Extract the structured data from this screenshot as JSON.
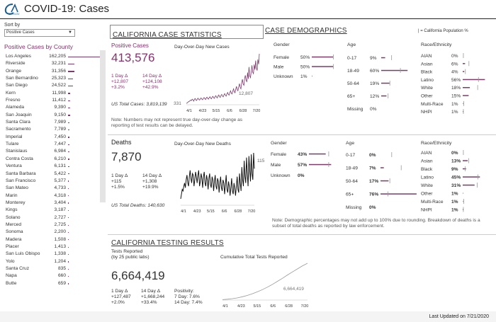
{
  "header": {
    "title": "COVID-19: Cases",
    "logo_text": "CA.GOV"
  },
  "sort": {
    "label": "Sort by",
    "value": "Positive Cases"
  },
  "counties": {
    "title": "Positive Cases by County",
    "items": [
      {
        "name": "Los Angeles",
        "value": "162,205",
        "n": 162205
      },
      {
        "name": "Riverside",
        "value": "32,231",
        "n": 32231
      },
      {
        "name": "Orange",
        "value": "31,356",
        "n": 31356
      },
      {
        "name": "San Bernardino",
        "value": "25,323",
        "n": 25323
      },
      {
        "name": "San Diego",
        "value": "24,522",
        "n": 24522
      },
      {
        "name": "Kern",
        "value": "11,998",
        "n": 11998
      },
      {
        "name": "Fresno",
        "value": "11,412",
        "n": 11412
      },
      {
        "name": "Alameda",
        "value": "9,390",
        "n": 9390
      },
      {
        "name": "San Joaquin",
        "value": "9,150",
        "n": 9150
      },
      {
        "name": "Santa Clara",
        "value": "7,989",
        "n": 7989
      },
      {
        "name": "Sacramento",
        "value": "7,789",
        "n": 7789
      },
      {
        "name": "Imperial",
        "value": "7,450",
        "n": 7450
      },
      {
        "name": "Tulare",
        "value": "7,447",
        "n": 7447
      },
      {
        "name": "Stanislaus",
        "value": "6,984",
        "n": 6984
      },
      {
        "name": "Contra Costa",
        "value": "6,210",
        "n": 6210
      },
      {
        "name": "Ventura",
        "value": "6,131",
        "n": 6131
      },
      {
        "name": "Santa Barbara",
        "value": "5,422",
        "n": 5422
      },
      {
        "name": "San Francisco",
        "value": "5,377",
        "n": 5377
      },
      {
        "name": "San Mateo",
        "value": "4,733",
        "n": 4733
      },
      {
        "name": "Marin",
        "value": "4,318",
        "n": 4318
      },
      {
        "name": "Monterey",
        "value": "3,404",
        "n": 3404
      },
      {
        "name": "Kings",
        "value": "3,187",
        "n": 3187
      },
      {
        "name": "Solano",
        "value": "2,727",
        "n": 2727
      },
      {
        "name": "Merced",
        "value": "2,725",
        "n": 2725
      },
      {
        "name": "Sonoma",
        "value": "2,200",
        "n": 2200
      },
      {
        "name": "Madera",
        "value": "1,508",
        "n": 1508
      },
      {
        "name": "Placer",
        "value": "1,413",
        "n": 1413
      },
      {
        "name": "San Luis Obispo",
        "value": "1,338",
        "n": 1338
      },
      {
        "name": "Yolo",
        "value": "1,204",
        "n": 1204
      },
      {
        "name": "Santa Cruz",
        "value": "835",
        "n": 835
      },
      {
        "name": "Napa",
        "value": "660",
        "n": 660
      },
      {
        "name": "Butte",
        "value": "659",
        "n": 659
      }
    ]
  },
  "sections": {
    "case_stats": "CALIFORNIA CASE STATISTICS",
    "case_demo": "CASE DEMOGRAPHICS",
    "testing": "CALIFORNIA TESTING RESULTS",
    "legend": "| = California Population %"
  },
  "cases": {
    "label": "Positive Cases",
    "total": "413,576",
    "d1_label": "1 Day Δ",
    "d1_abs": "+12,807",
    "d1_pct": "+3.2%",
    "d14_label": "14 Day Δ",
    "d14_abs": "+124,108",
    "d14_pct": "+42.9%",
    "us_total": "US Total Cases: 3,819,139",
    "chart_title": "Day-Over-Day New Cases",
    "chart_first": "331",
    "chart_last": "12,807",
    "note": "Note: Numbers may not represent true day-over-day change as reporting of test results can be delayed."
  },
  "deaths": {
    "label": "Deaths",
    "total": "7,870",
    "d1_label": "1 Day Δ",
    "d1_abs": "+115",
    "d1_pct": "+1.5%",
    "d14_label": "14 Day Δ",
    "d14_abs": "+1,308",
    "d14_pct": "+19.9%",
    "us_total": "US Total Deaths: 140,630",
    "chart_title": "Day-Over-Day New Deaths",
    "chart_last": "115",
    "note": "Note: Demographic percentages may not add up to 100% due to rounding. Breakdown of deaths is a subset of total deaths as reported by law enforcement."
  },
  "testing": {
    "label": "Tests Reported",
    "sub": "(by 25 public labs)",
    "total": "6,664,419",
    "d1_label": "1 Day Δ",
    "d1_abs": "+127,487",
    "d1_pct": "+2.0%",
    "d14_label": "14 Day Δ",
    "d14_abs": "+1,668,244",
    "d14_pct": "+33.4%",
    "pos_label": "Positivity:",
    "pos7": "7 Day: 7.6%",
    "pos14": "14 Day: 7.4%",
    "chart_title": "Cumulative Total Tests Reported",
    "chart_last": "6,664,419"
  },
  "axis_dates": [
    "4/1",
    "4/23",
    "5/15",
    "6/6",
    "6/28",
    "7/20"
  ],
  "demo_headers": {
    "gender": "Gender",
    "age": "Age",
    "race": "Race/Ethnicity"
  },
  "case_demo": {
    "gender": [
      {
        "label": "Female",
        "value": "50%",
        "v": 50,
        "pop": 50
      },
      {
        "label": "Male",
        "value": "50%",
        "v": 50,
        "pop": 50
      },
      {
        "label": "Unknown",
        "value": "1%",
        "v": 1,
        "pop": null
      }
    ],
    "age": [
      {
        "label": "0-17",
        "value": "9%",
        "v": 9,
        "pop": 23
      },
      {
        "label": "18-49",
        "value": "60%",
        "v": 60,
        "pop": 43
      },
      {
        "label": "50-64",
        "value": "19%",
        "v": 19,
        "pop": 19
      },
      {
        "label": "65+",
        "value": "12%",
        "v": 12,
        "pop": 15
      },
      {
        "label": "Missing",
        "value": "0%",
        "v": 0,
        "pop": null
      }
    ],
    "race": [
      {
        "label": "AIAN",
        "value": "0%",
        "v": 0,
        "pop": 1
      },
      {
        "label": "Asian",
        "value": "6%",
        "v": 6,
        "pop": 15
      },
      {
        "label": "Black",
        "value": "4%",
        "v": 4,
        "pop": 6
      },
      {
        "label": "Latino",
        "value": "56%",
        "v": 56,
        "pop": 39
      },
      {
        "label": "White",
        "value": "18%",
        "v": 18,
        "pop": 37
      },
      {
        "label": "Other",
        "value": "15%",
        "v": 15,
        "pop": null
      },
      {
        "label": "Multi-Race",
        "value": "1%",
        "v": 1,
        "pop": 2
      },
      {
        "label": "NHPI",
        "value": "1%",
        "v": 1,
        "pop": 1
      }
    ]
  },
  "death_demo": {
    "gender": [
      {
        "label": "Female",
        "value": "43%",
        "v": 43,
        "pop": 50
      },
      {
        "label": "Male",
        "value": "57%",
        "v": 57,
        "pop": 50
      },
      {
        "label": "Unknown",
        "value": "0%",
        "v": 0,
        "pop": null
      }
    ],
    "age": [
      {
        "label": "0-17",
        "value": "0%",
        "v": 0,
        "pop": 23
      },
      {
        "label": "18-49",
        "value": "7%",
        "v": 7,
        "pop": 43
      },
      {
        "label": "50-64",
        "value": "17%",
        "v": 17,
        "pop": 19
      },
      {
        "label": "65+",
        "value": "76%",
        "v": 76,
        "pop": 15
      },
      {
        "label": "Missing",
        "value": "0%",
        "v": 0,
        "pop": null
      }
    ],
    "race": [
      {
        "label": "AIAN",
        "value": "0%",
        "v": 0,
        "pop": 1
      },
      {
        "label": "Asian",
        "value": "13%",
        "v": 13,
        "pop": 15
      },
      {
        "label": "Black",
        "value": "9%",
        "v": 9,
        "pop": 6
      },
      {
        "label": "Latino",
        "value": "45%",
        "v": 45,
        "pop": 39
      },
      {
        "label": "White",
        "value": "31%",
        "v": 31,
        "pop": 37
      },
      {
        "label": "Other",
        "value": "1%",
        "v": 1,
        "pop": null
      },
      {
        "label": "Multi-Race",
        "value": "1%",
        "v": 1,
        "pop": 2
      },
      {
        "label": "NHPI",
        "value": "1%",
        "v": 1,
        "pop": 1
      }
    ]
  },
  "footer": {
    "last_updated": "Last Updated on 7/21/2020"
  },
  "chart_data": [
    {
      "type": "line",
      "title": "Day-Over-Day New Cases",
      "x_ticks": [
        "4/1",
        "4/23",
        "5/15",
        "6/6",
        "6/28",
        "7/20"
      ],
      "values": [
        331,
        420,
        610,
        780,
        870,
        1010,
        1180,
        1050,
        1400,
        1230,
        900,
        1380,
        1560,
        1200,
        1080,
        1490,
        1650,
        1300,
        1200,
        1520,
        1700,
        1420,
        1250,
        1600,
        1800,
        1530,
        1320,
        1700,
        1900,
        1560,
        1400,
        1810,
        2010,
        1650,
        1500,
        1920,
        2100,
        1760,
        1600,
        2050,
        2280,
        1880,
        1700,
        2200,
        2450,
        2000,
        1830,
        2350,
        2600,
        2150,
        1980,
        2500,
        2800,
        2350,
        2150,
        2700,
        3100,
        2600,
        2400,
        3050,
        3500,
        2900,
        2700,
        3400,
        4000,
        3300,
        3000,
        3900,
        4600,
        3800,
        3500,
        4500,
        5300,
        4400,
        4000,
        5500,
        6400,
        5200,
        4900,
        6600,
        7400,
        6100,
        5800,
        8100,
        6500,
        9500,
        7200,
        6800,
        8400,
        9900,
        8200,
        7800,
        10100,
        8800,
        11100,
        9300,
        8600,
        11400,
        10200,
        12807
      ]
    },
    {
      "type": "line",
      "title": "Day-Over-Day New Deaths",
      "x_ticks": [
        "4/1",
        "4/23",
        "5/15",
        "6/6",
        "6/28",
        "7/20"
      ],
      "values": [
        20,
        35,
        50,
        45,
        60,
        70,
        55,
        80,
        95,
        70,
        60,
        90,
        110,
        85,
        70,
        100,
        95,
        60,
        80,
        105,
        90,
        70,
        95,
        110,
        60,
        75,
        100,
        85,
        55,
        90,
        105,
        70,
        60,
        95,
        80,
        50,
        85,
        100,
        65,
        55,
        90,
        80,
        45,
        75,
        95,
        60,
        50,
        85,
        75,
        40,
        70,
        90,
        55,
        45,
        80,
        70,
        35,
        65,
        95,
        50,
        40,
        75,
        60,
        30,
        55,
        85,
        45,
        35,
        70,
        55,
        30,
        60,
        90,
        50,
        40,
        100,
        70,
        45,
        120,
        80,
        60,
        140,
        90,
        70,
        150,
        100,
        60,
        155,
        110,
        75,
        160,
        100,
        80,
        165,
        115
      ]
    },
    {
      "type": "area",
      "title": "Cumulative Total Tests Reported",
      "x_ticks": [
        "4/1",
        "4/23",
        "5/15",
        "6/6",
        "6/28",
        "7/20"
      ],
      "values": [
        80000,
        150000,
        250000,
        400000,
        600000,
        850000,
        1150000,
        1500000,
        1900000,
        2350000,
        2850000,
        3400000,
        3950000,
        4550000,
        5100000,
        5650000,
        6200000,
        6664419
      ]
    }
  ]
}
